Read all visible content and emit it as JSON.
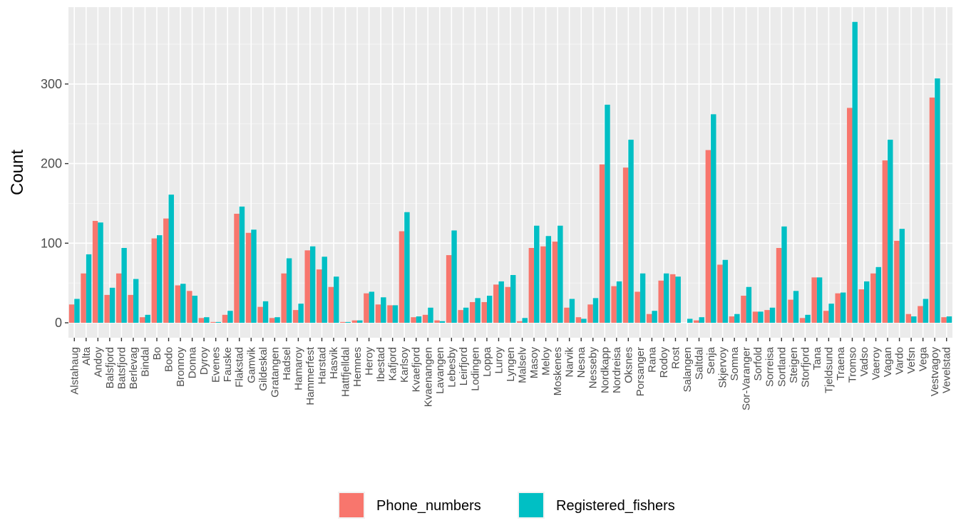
{
  "chart_data": {
    "type": "bar",
    "ylabel": "Count",
    "xlabel": "",
    "ylim": [
      0,
      395
    ],
    "y_ticks": [
      0,
      100,
      200,
      300
    ],
    "grid": true,
    "legend_position": "bottom",
    "categories": [
      "Alstahaug",
      "Alta",
      "Andoy",
      "Balsfjord",
      "Batsfjord",
      "Berlevag",
      "Bindal",
      "Bo",
      "Bodo",
      "Bronnoy",
      "Donna",
      "Dyroy",
      "Evenes",
      "Fauske",
      "Flakstad",
      "Gamvik",
      "Gildeskal",
      "Gratangen",
      "Hadsel",
      "Hamaroy",
      "Hammerfest",
      "Harstad",
      "Hasvik",
      "Hattfjelldal",
      "Hemnes",
      "Heroy",
      "Ibestad",
      "Kafjord",
      "Karlsoy",
      "Kvaefjord",
      "Kvaenangen",
      "Lavangen",
      "Lebesby",
      "Leirfjord",
      "Lodingen",
      "Loppa",
      "Luroy",
      "Lyngen",
      "Malselv",
      "Masoy",
      "Meloy",
      "Moskenes",
      "Narvik",
      "Nesna",
      "Nesseby",
      "Nordkapp",
      "Nordreisa",
      "Oksnes",
      "Porsanger",
      "Rana",
      "Rodoy",
      "Rost",
      "Salangen",
      "Saltdal",
      "Senja",
      "Skjervoy",
      "Somna",
      "Sor-Varanger",
      "Sorfold",
      "Sorreisa",
      "Sortland",
      "Steigen",
      "Storfjord",
      "Tana",
      "Tjeldsund",
      "Traena",
      "Tromso",
      "Vadso",
      "Vaeroy",
      "Vagan",
      "Vardo",
      "Vefsn",
      "Vega",
      "Vestvagoy",
      "Vevelstad"
    ],
    "series": [
      {
        "name": "Phone_numbers",
        "color": "#F8766D",
        "values": [
          23,
          62,
          128,
          35,
          62,
          35,
          7,
          106,
          131,
          47,
          40,
          6,
          1,
          10,
          137,
          113,
          20,
          6,
          62,
          16,
          91,
          67,
          45,
          1,
          3,
          37,
          23,
          22,
          115,
          7,
          10,
          3,
          85,
          16,
          26,
          26,
          48,
          45,
          2,
          94,
          96,
          102,
          19,
          7,
          23,
          199,
          46,
          195,
          39,
          11,
          53,
          61,
          0,
          3,
          217,
          73,
          8,
          34,
          14,
          16,
          94,
          29,
          6,
          57,
          15,
          37,
          270,
          42,
          62,
          204,
          103,
          11,
          21,
          283,
          7
        ]
      },
      {
        "name": "Registered_fishers",
        "color": "#00BFC4",
        "values": [
          30,
          86,
          126,
          44,
          94,
          55,
          10,
          110,
          161,
          49,
          34,
          7,
          1,
          15,
          146,
          117,
          27,
          7,
          81,
          24,
          96,
          83,
          58,
          1,
          3,
          39,
          32,
          22,
          139,
          8,
          19,
          2,
          116,
          19,
          31,
          34,
          52,
          60,
          6,
          122,
          109,
          122,
          30,
          5,
          31,
          274,
          52,
          230,
          62,
          15,
          62,
          58,
          5,
          7,
          262,
          79,
          11,
          45,
          14,
          19,
          121,
          40,
          10,
          57,
          24,
          38,
          378,
          52,
          70,
          230,
          118,
          8,
          30,
          307,
          8
        ]
      }
    ]
  }
}
